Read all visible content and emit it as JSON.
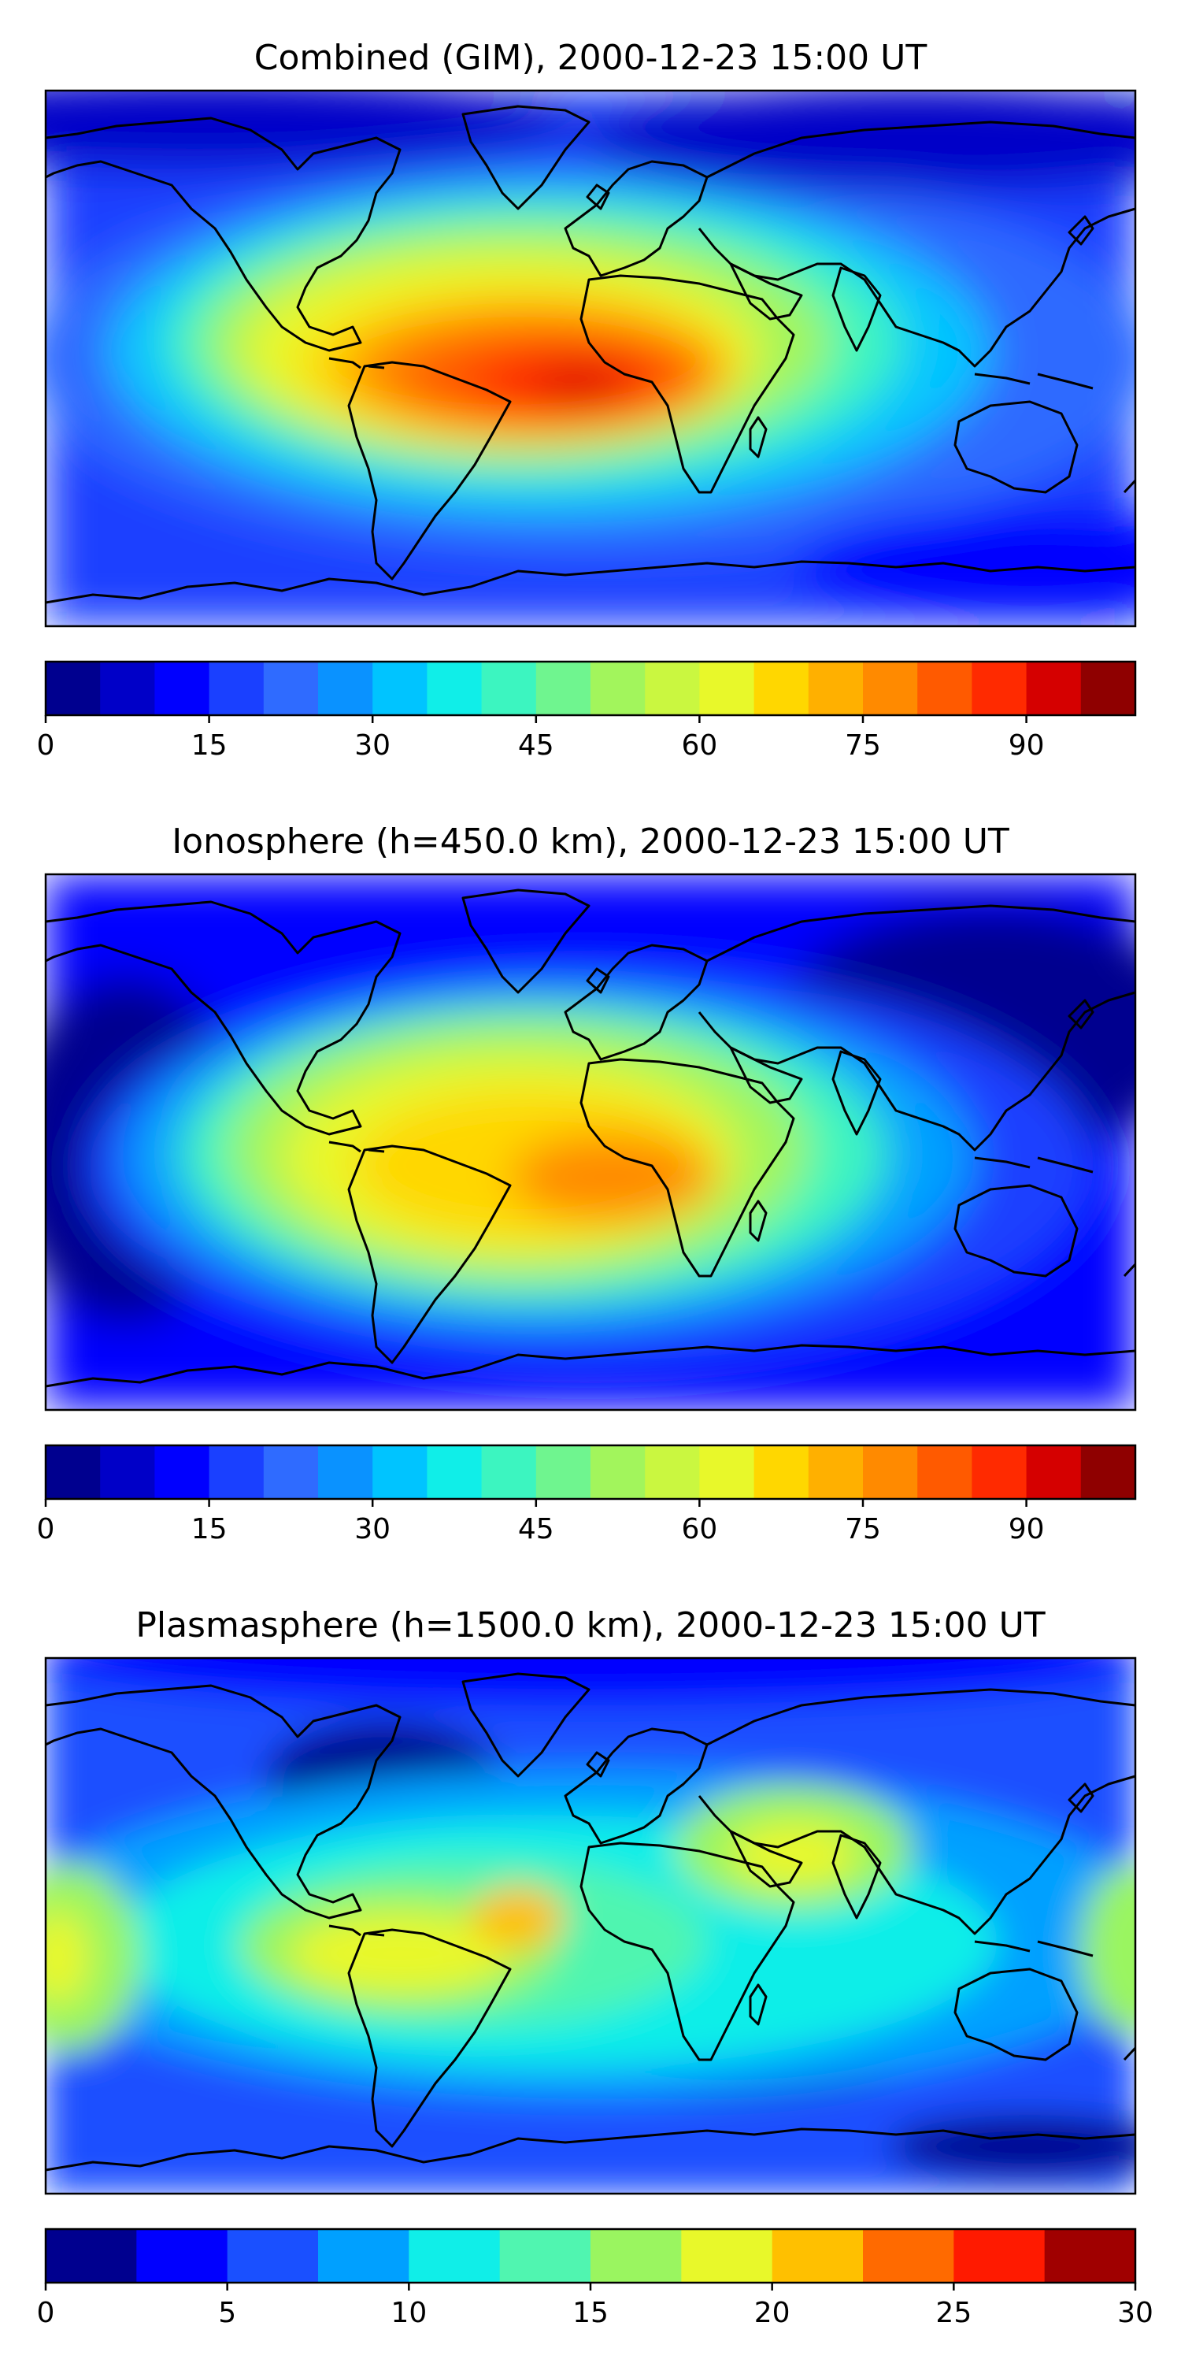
{
  "panels": [
    {
      "title": "Combined (GIM), 2000-12-23 15:00 UT",
      "colorbar": {
        "min": 0,
        "max": 100,
        "step": 5,
        "ticks": [
          "0",
          "15",
          "30",
          "45",
          "60",
          "75",
          "90"
        ],
        "tick_values": [
          0,
          15,
          30,
          45,
          60,
          75,
          90
        ],
        "colors": [
          "#00008f",
          "#0000c8",
          "#0000ff",
          "#1a40ff",
          "#2f6bff",
          "#0a92ff",
          "#00c4ff",
          "#10eee8",
          "#3cf5c0",
          "#6ff58f",
          "#a2f55c",
          "#caf740",
          "#e8f82a",
          "#ffd700",
          "#ffb000",
          "#ff8a00",
          "#ff5a00",
          "#ff2a00",
          "#d50000",
          "#8f0000"
        ]
      }
    },
    {
      "title": "Ionosphere  (h=450.0 km), 2000-12-23 15:00 UT",
      "colorbar": {
        "min": 0,
        "max": 100,
        "step": 5,
        "ticks": [
          "0",
          "15",
          "30",
          "45",
          "60",
          "75",
          "90"
        ],
        "tick_values": [
          0,
          15,
          30,
          45,
          60,
          75,
          90
        ],
        "colors": [
          "#00008f",
          "#0000c8",
          "#0000ff",
          "#1a40ff",
          "#2f6bff",
          "#0a92ff",
          "#00c4ff",
          "#10eee8",
          "#3cf5c0",
          "#6ff58f",
          "#a2f55c",
          "#caf740",
          "#e8f82a",
          "#ffd700",
          "#ffb000",
          "#ff8a00",
          "#ff5a00",
          "#ff2a00",
          "#d50000",
          "#8f0000"
        ]
      }
    },
    {
      "title": "Plasmasphere (h=1500.0 km), 2000-12-23 15:00 UT",
      "colorbar": {
        "min": 0,
        "max": 30,
        "step": 2.5,
        "ticks": [
          "0",
          "5",
          "10",
          "15",
          "20",
          "25",
          "30"
        ],
        "tick_values": [
          0,
          5,
          10,
          15,
          20,
          25,
          30
        ],
        "colors": [
          "#00008f",
          "#0000ff",
          "#1a50ff",
          "#00a0ff",
          "#10eee8",
          "#50f5b0",
          "#9af560",
          "#e8f82a",
          "#ffc000",
          "#ff6a00",
          "#ff1a00",
          "#a00000"
        ]
      }
    }
  ]
}
